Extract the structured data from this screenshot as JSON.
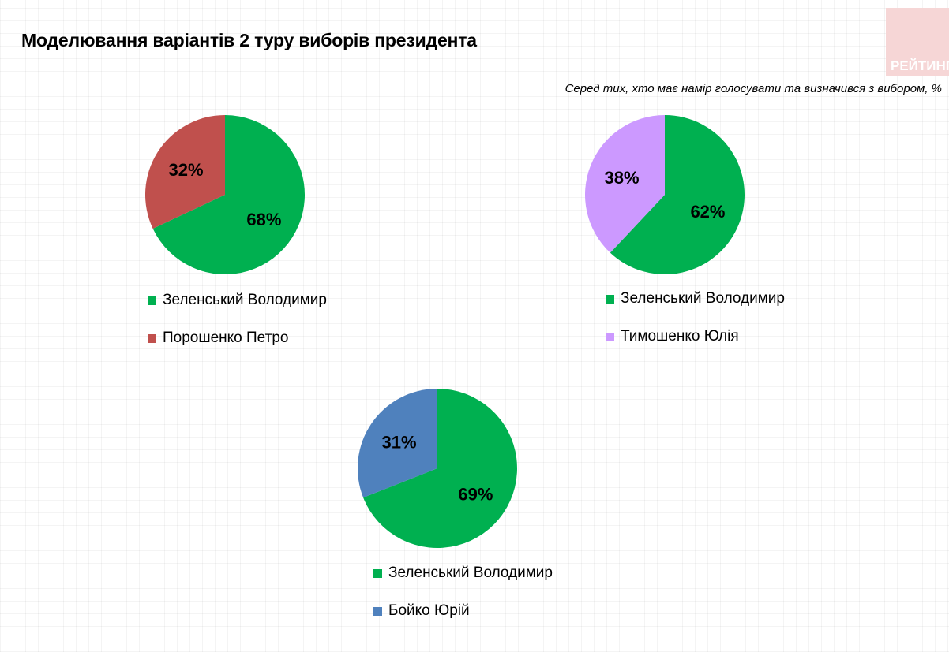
{
  "title": "Моделювання варіантів 2 туру виборів президента",
  "subtitle": "Серед тих, хто має намір голосувати  та визначився з вибором, %",
  "logo_text": "РЕЙТИНГ",
  "colors": {
    "zelensky": "#00b050",
    "poroshenko": "#c0504d",
    "tymoshenko": "#cc99ff",
    "boyko": "#4f81bd"
  },
  "chart_data": [
    {
      "type": "pie",
      "series": [
        {
          "name": "Зеленський Володимир",
          "value": 68,
          "label": "68%",
          "color": "#00b050"
        },
        {
          "name": "Порошенко Петро",
          "value": 32,
          "label": "32%",
          "color": "#c0504d"
        }
      ]
    },
    {
      "type": "pie",
      "series": [
        {
          "name": "Зеленський Володимир",
          "value": 62,
          "label": "62%",
          "color": "#00b050"
        },
        {
          "name": "Тимошенко Юлія",
          "value": 38,
          "label": "38%",
          "color": "#cc99ff"
        }
      ]
    },
    {
      "type": "pie",
      "series": [
        {
          "name": "Зеленський Володимир",
          "value": 69,
          "label": "69%",
          "color": "#00b050"
        },
        {
          "name": "Бойко Юрій",
          "value": 31,
          "label": "31%",
          "color": "#4f81bd"
        }
      ]
    }
  ]
}
